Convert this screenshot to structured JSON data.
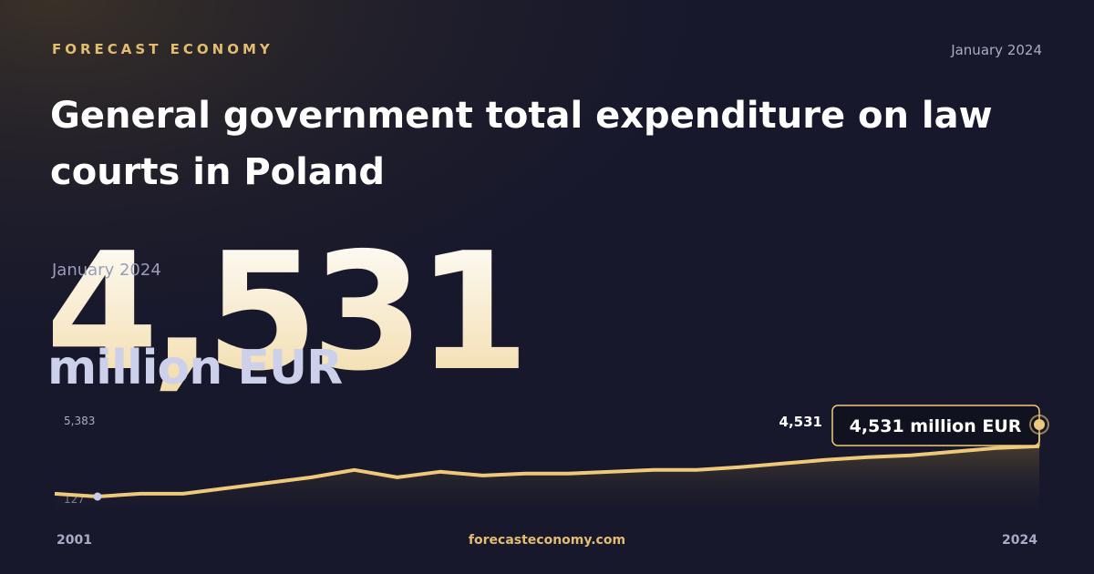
{
  "brand": "FORECAST ECONOMY",
  "date": "January 2024",
  "headline": {
    "date": "January 2024",
    "value": "4,531",
    "unit": "million EUR"
  },
  "footer": "forecasteconomy.com",
  "chart_data": {
    "type": "line",
    "title": "General government total expenditure on law courts in Poland",
    "x": [
      2001,
      2002,
      2003,
      2004,
      2005,
      2006,
      2007,
      2008,
      2009,
      2010,
      2011,
      2012,
      2013,
      2014,
      2015,
      2016,
      2017,
      2018,
      2019,
      2020,
      2021,
      2022,
      2023,
      2024
    ],
    "series": [
      {
        "name": "million EUR",
        "color": "#efc97a",
        "values": [
          370,
          127,
          370,
          370,
          850,
          1330,
          1810,
          2450,
          1810,
          2290,
          1970,
          2130,
          2130,
          2290,
          2450,
          2450,
          2690,
          3010,
          3330,
          3570,
          3730,
          4050,
          4370,
          4531
        ]
      }
    ],
    "xlim": [
      2001,
      2024
    ],
    "xticks": [
      2001,
      2024
    ],
    "ylim": [
      127,
      5383
    ],
    "yticks": [
      {
        "value": 5383,
        "label": "5,383"
      },
      127
    ],
    "latest_label": "4,531",
    "callout": "4,531 million EUR"
  }
}
